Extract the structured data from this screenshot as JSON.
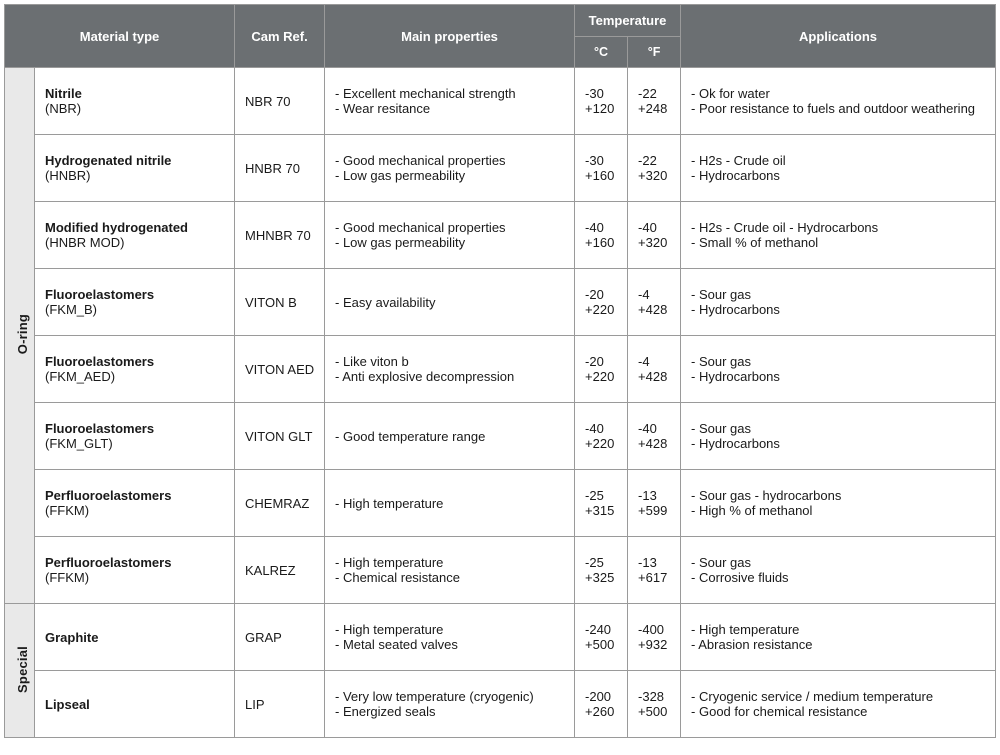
{
  "colors": {
    "header_bg": "#6b6f72",
    "header_text": "#ffffff",
    "group_bg": "#e9e9e9",
    "border": "#9a9a9a",
    "text": "#1a1a1a",
    "bg": "#ffffff"
  },
  "headers": {
    "material_type": "Material type",
    "cam_ref": "Cam Ref.",
    "main_properties": "Main properties",
    "temperature": "Temperature",
    "temp_c": "°C",
    "temp_f": "°F",
    "applications": "Applications"
  },
  "groups": [
    {
      "label": "O-ring",
      "row_count": 8
    },
    {
      "label": "Special",
      "row_count": 2
    }
  ],
  "rows": [
    {
      "material_title": "Nitrile",
      "material_sub": "(NBR)",
      "cam_ref": "NBR 70",
      "properties": [
        "- Excellent mechanical strength",
        "- Wear resitance"
      ],
      "temp_c": [
        "-30",
        "+120"
      ],
      "temp_f": [
        "-22",
        "+248"
      ],
      "applications": [
        "- Ok for water",
        "- Poor resistance to fuels and outdoor weathering"
      ]
    },
    {
      "material_title": "Hydrogenated nitrile",
      "material_sub": "(HNBR)",
      "cam_ref": "HNBR 70",
      "properties": [
        "- Good mechanical properties",
        "- Low gas permeability"
      ],
      "temp_c": [
        "-30",
        "+160"
      ],
      "temp_f": [
        "-22",
        "+320"
      ],
      "applications": [
        "- H2s  - Crude oil",
        "- Hydrocarbons"
      ]
    },
    {
      "material_title": "Modified hydrogenated",
      "material_sub": "(HNBR MOD)",
      "cam_ref": "MHNBR 70",
      "properties": [
        "- Good mechanical properties",
        "- Low gas permeability"
      ],
      "temp_c": [
        "-40",
        "+160"
      ],
      "temp_f": [
        "-40",
        "+320"
      ],
      "applications": [
        "- H2s - Crude oil - Hydrocarbons",
        "- Small % of methanol"
      ]
    },
    {
      "material_title": "Fluoroelastomers",
      "material_sub": "(FKM_B)",
      "cam_ref": "VITON B",
      "properties": [
        "- Easy availability"
      ],
      "temp_c": [
        "-20",
        "+220"
      ],
      "temp_f": [
        "-4",
        "+428"
      ],
      "applications": [
        "- Sour gas",
        "- Hydrocarbons"
      ]
    },
    {
      "material_title": "Fluoroelastomers",
      "material_sub": "(FKM_AED)",
      "cam_ref": "VITON AED",
      "properties": [
        "- Like viton b",
        "- Anti explosive decompression"
      ],
      "temp_c": [
        "-20",
        "+220"
      ],
      "temp_f": [
        "-4",
        "+428"
      ],
      "applications": [
        "- Sour gas",
        "- Hydrocarbons"
      ]
    },
    {
      "material_title": "Fluoroelastomers",
      "material_sub": "(FKM_GLT)",
      "cam_ref": "VITON GLT",
      "properties": [
        "- Good temperature range"
      ],
      "temp_c": [
        "-40",
        "+220"
      ],
      "temp_f": [
        "-40",
        "+428"
      ],
      "applications": [
        "- Sour gas",
        "- Hydrocarbons"
      ]
    },
    {
      "material_title": "Perfluoroelastomers",
      "material_sub": "(FFKM)",
      "cam_ref": "CHEMRAZ",
      "properties": [
        "- High temperature"
      ],
      "temp_c": [
        "-25",
        "+315"
      ],
      "temp_f": [
        "-13",
        "+599"
      ],
      "applications": [
        "- Sour gas - hydrocarbons",
        "- High % of methanol"
      ]
    },
    {
      "material_title": "Perfluoroelastomers",
      "material_sub": "(FFKM)",
      "cam_ref": "KALREZ",
      "properties": [
        "- High temperature",
        "- Chemical resistance"
      ],
      "temp_c": [
        "-25",
        "+325"
      ],
      "temp_f": [
        "-13",
        "+617"
      ],
      "applications": [
        "- Sour gas",
        "- Corrosive fluids"
      ]
    },
    {
      "material_title": "Graphite",
      "material_sub": "",
      "cam_ref": "GRAP",
      "properties": [
        "- High temperature",
        "- Metal seated valves"
      ],
      "temp_c": [
        "-240",
        "+500"
      ],
      "temp_f": [
        "-400",
        "+932"
      ],
      "applications": [
        "- High temperature",
        "- Abrasion resistance"
      ]
    },
    {
      "material_title": "Lipseal",
      "material_sub": "",
      "cam_ref": "LIP",
      "properties": [
        "- Very low temperature (cryogenic)",
        "- Energized seals"
      ],
      "temp_c": [
        "-200",
        "+260"
      ],
      "temp_f": [
        "-328",
        "+500"
      ],
      "applications": [
        "- Cryogenic service / medium temperature",
        "- Good for chemical resistance"
      ]
    }
  ]
}
